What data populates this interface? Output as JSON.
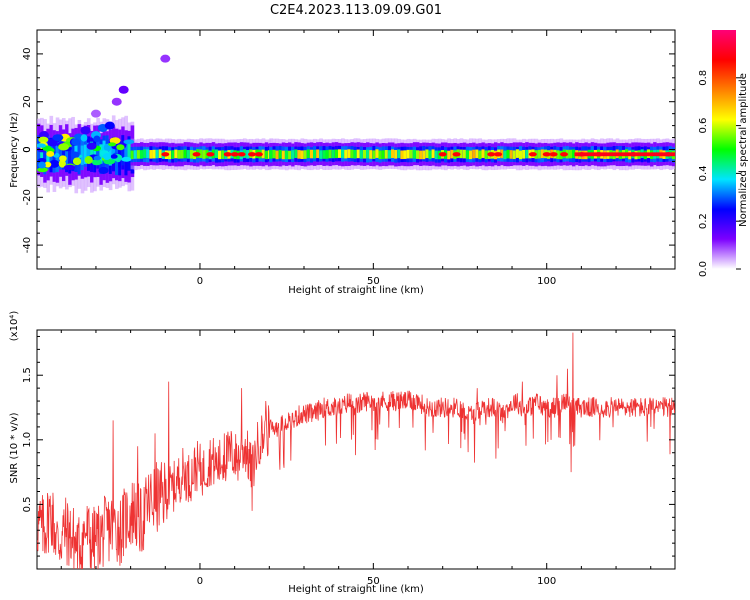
{
  "title": "C2E4.2023.113.09.09.G01",
  "chart_data": [
    {
      "type": "heatmap",
      "title": "C2E4.2023.113.09.09.G01",
      "xlabel": "Height of straight line (km)",
      "ylabel": "Frequency (Hz)",
      "xlim": [
        -47,
        137
      ],
      "ylim": [
        -50,
        50
      ],
      "xticks": [
        0,
        50,
        100
      ],
      "yticks": [
        -40,
        -20,
        0,
        20,
        40
      ],
      "grid": false,
      "colorbar": {
        "label": "Normalized spectral amplitude",
        "range": [
          0.0,
          1.0
        ],
        "ticks": [
          "0.0",
          "0.2",
          "0.4",
          "0.6",
          "0.8"
        ],
        "colormap": [
          "#ffffff",
          "#7c00ff",
          "#0000ff",
          "#00e5ff",
          "#00ff00",
          "#ffff00",
          "#ff7f00",
          "#ff0000",
          "#ff0077"
        ]
      },
      "band": {
        "center_frequency_hz": -2,
        "segments": [
          {
            "x_start": -47,
            "x_end": -20,
            "spread_hz": 9,
            "level": 0.35
          },
          {
            "x_start": -20,
            "x_end": 20,
            "spread_hz": 4,
            "level": 0.55
          },
          {
            "x_start": 20,
            "x_end": 137,
            "spread_hz": 4,
            "level": 0.6
          }
        ],
        "hot_spots_x": [
          -10,
          -1,
          3,
          8,
          10,
          12,
          15,
          17,
          70,
          74,
          84,
          86,
          96,
          100,
          102,
          105,
          110,
          115,
          125,
          135
        ],
        "scatter_points": [
          {
            "x": -40,
            "y": 3,
            "v": 0.25
          },
          {
            "x": -35,
            "y": 5,
            "v": 0.3
          },
          {
            "x": -33,
            "y": 8,
            "v": 0.2
          },
          {
            "x": -30,
            "y": 6,
            "v": 0.35
          },
          {
            "x": -28,
            "y": 9,
            "v": 0.3
          },
          {
            "x": -26,
            "y": 10,
            "v": 0.25
          },
          {
            "x": -22,
            "y": 25,
            "v": 0.15
          },
          {
            "x": -24,
            "y": 20,
            "v": 0.1
          },
          {
            "x": -10,
            "y": 38,
            "v": 0.1
          },
          {
            "x": -30,
            "y": 15,
            "v": 0.08
          },
          {
            "x": -45,
            "y": 6,
            "v": 0.2
          },
          {
            "x": -42,
            "y": -6,
            "v": 0.25
          }
        ]
      }
    },
    {
      "type": "line",
      "xlabel": "Height of straight line (km)",
      "ylabel": "SNR (10 * v/v)",
      "y_multiplier": "(x10⁴)",
      "xlim": [
        -47,
        137
      ],
      "ylim": [
        0.0,
        1.85
      ],
      "xticks": [
        0,
        50,
        100
      ],
      "yticks": [
        0.5,
        1.0,
        1.5
      ],
      "color": "#ee3333",
      "series": [
        {
          "name": "",
          "x": [
            -47,
            -45,
            -43,
            -41,
            -39,
            -37,
            -35,
            -33,
            -31,
            -29,
            -27,
            -25,
            -23,
            -21,
            -19,
            -17,
            -15,
            -13,
            -11,
            -9,
            -7,
            -5,
            -3,
            -1,
            1,
            3,
            5,
            7,
            9,
            11,
            13,
            15,
            17,
            19,
            21,
            23,
            25,
            27,
            29,
            31,
            33,
            35,
            37,
            39,
            41,
            43,
            45,
            47,
            49,
            51,
            53,
            55,
            57,
            59,
            61,
            63,
            65,
            67,
            69,
            71,
            73,
            75,
            77,
            79,
            81,
            83,
            85,
            87,
            89,
            91,
            93,
            95,
            97,
            99,
            101,
            103,
            105,
            107,
            109,
            111,
            113,
            115,
            117,
            119,
            121,
            123,
            125,
            127,
            129,
            131,
            133,
            135,
            137
          ],
          "y": [
            0.35,
            0.3,
            0.45,
            0.2,
            0.3,
            0.25,
            0.15,
            0.3,
            0.2,
            0.25,
            0.3,
            0.35,
            0.3,
            0.4,
            0.45,
            0.35,
            0.5,
            0.55,
            0.55,
            0.6,
            0.65,
            0.75,
            0.7,
            0.8,
            0.75,
            0.85,
            0.8,
            0.85,
            0.9,
            0.85,
            0.95,
            0.75,
            1.0,
            1.05,
            1.1,
            1.1,
            1.15,
            1.15,
            1.2,
            1.2,
            1.2,
            1.25,
            1.25,
            1.25,
            1.25,
            1.3,
            1.25,
            1.3,
            1.3,
            1.3,
            1.3,
            1.3,
            1.3,
            1.3,
            1.3,
            1.3,
            1.25,
            1.25,
            1.25,
            1.25,
            1.25,
            1.25,
            1.2,
            1.2,
            1.25,
            1.25,
            1.25,
            1.2,
            1.25,
            1.3,
            1.25,
            1.25,
            1.3,
            1.25,
            1.25,
            1.25,
            1.3,
            1.25,
            1.25,
            1.25,
            1.25,
            1.25,
            1.25,
            1.25,
            1.25,
            1.25,
            1.25,
            1.25,
            1.25,
            1.25,
            1.25,
            1.25,
            1.25
          ]
        }
      ],
      "spikes": [
        {
          "x": -25,
          "y": 1.15
        },
        {
          "x": -18,
          "y": 0.95
        },
        {
          "x": -13,
          "y": 1.05
        },
        {
          "x": -9,
          "y": 1.45
        },
        {
          "x": 7,
          "y": 1.05
        },
        {
          "x": 12,
          "y": 1.4
        },
        {
          "x": 15,
          "y": 0.45
        },
        {
          "x": 19,
          "y": 1.3
        },
        {
          "x": 80,
          "y": 1.4
        },
        {
          "x": 93,
          "y": 1.45
        },
        {
          "x": 103,
          "y": 1.5
        },
        {
          "x": 106,
          "y": 1.55
        },
        {
          "x": 107.5,
          "y": 1.83
        },
        {
          "x": 107,
          "y": 0.75
        },
        {
          "x": 130,
          "y": 1.1
        }
      ]
    }
  ]
}
